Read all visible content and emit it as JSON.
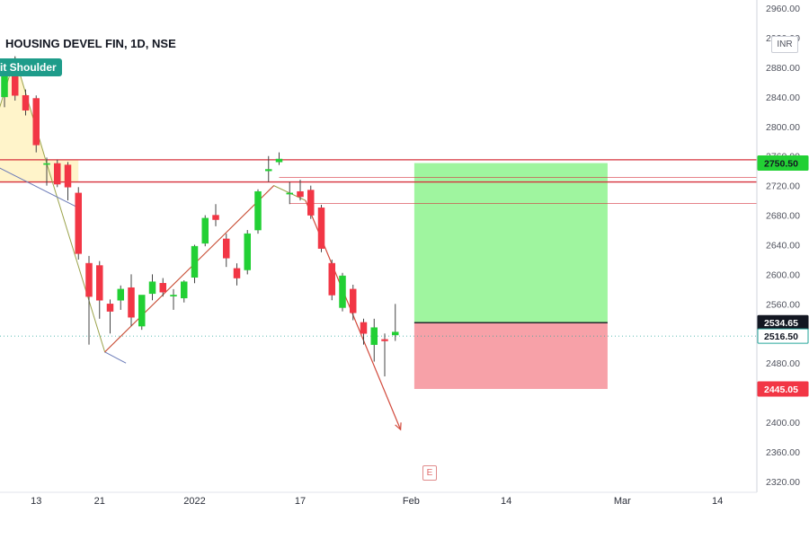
{
  "header": {
    "title": "HOUSING DEVEL FIN, 1D, NSE",
    "pattern_label": "it Shoulder",
    "currency": "INR",
    "event_marker": "E"
  },
  "colors": {
    "up": "#22d034",
    "down": "#f23645",
    "profit_zone": "#9ff59f",
    "loss_zone": "#f7a1a8",
    "pattern_fill": "#fff3c4",
    "pattern_line": "#9aa24a",
    "resistance": "#d6303c",
    "badge_dark": "#131722",
    "badge_red": "#f23645",
    "badge_green": "#22d034"
  },
  "chart_data": {
    "type": "candlestick",
    "title": "HOUSING DEVEL FIN, 1D, NSE",
    "ylim": [
      2315,
      2965
    ],
    "y_ticks": [
      2320,
      2360,
      2400,
      2440,
      2480,
      2520,
      2560,
      2600,
      2640,
      2680,
      2720,
      2760,
      2800,
      2840,
      2880,
      2920,
      2960
    ],
    "y_tick_labels": [
      "2320.00",
      "2360.00",
      "2400.00",
      "2440.00",
      "2480.00",
      "2520.00",
      "2560.00",
      "2600.00",
      "2640.00",
      "2680.00",
      "2720.00",
      "2760.00",
      "2800.00",
      "2840.00",
      "2880.00",
      "2920.00",
      "2960.00"
    ],
    "x_labels": [
      {
        "label": "13",
        "bar": 3
      },
      {
        "label": "21",
        "bar": 9
      },
      {
        "label": "2022",
        "bar": 18
      },
      {
        "label": "17",
        "bar": 28
      },
      {
        "label": "Feb",
        "bar": 38.5
      },
      {
        "label": "14",
        "bar": 47.5
      },
      {
        "label": "Mar",
        "bar": 58.5
      },
      {
        "label": "14",
        "bar": 67.5
      }
    ],
    "candles": [
      {
        "o": 2840,
        "h": 2875,
        "l": 2826,
        "c": 2870
      },
      {
        "o": 2868,
        "h": 2895,
        "l": 2835,
        "c": 2842
      },
      {
        "o": 2842,
        "h": 2850,
        "l": 2815,
        "c": 2822
      },
      {
        "o": 2838,
        "h": 2842,
        "l": 2765,
        "c": 2775
      },
      {
        "o": 2750,
        "h": 2758,
        "l": 2720,
        "c": 2750
      },
      {
        "o": 2750,
        "h": 2755,
        "l": 2718,
        "c": 2722
      },
      {
        "o": 2748,
        "h": 2752,
        "l": 2700,
        "c": 2718
      },
      {
        "o": 2710,
        "h": 2718,
        "l": 2620,
        "c": 2628
      },
      {
        "o": 2615,
        "h": 2625,
        "l": 2505,
        "c": 2570
      },
      {
        "o": 2612,
        "h": 2618,
        "l": 2540,
        "c": 2565
      },
      {
        "o": 2560,
        "h": 2566,
        "l": 2520,
        "c": 2550
      },
      {
        "o": 2565,
        "h": 2585,
        "l": 2552,
        "c": 2580
      },
      {
        "o": 2582,
        "h": 2600,
        "l": 2530,
        "c": 2542
      },
      {
        "o": 2530,
        "h": 2570,
        "l": 2525,
        "c": 2572
      },
      {
        "o": 2574,
        "h": 2600,
        "l": 2565,
        "c": 2590
      },
      {
        "o": 2588,
        "h": 2595,
        "l": 2570,
        "c": 2576
      },
      {
        "o": 2572,
        "h": 2580,
        "l": 2552,
        "c": 2572
      },
      {
        "o": 2568,
        "h": 2592,
        "l": 2562,
        "c": 2590
      },
      {
        "o": 2596,
        "h": 2640,
        "l": 2588,
        "c": 2638
      },
      {
        "o": 2642,
        "h": 2680,
        "l": 2638,
        "c": 2676
      },
      {
        "o": 2680,
        "h": 2695,
        "l": 2665,
        "c": 2674
      },
      {
        "o": 2648,
        "h": 2655,
        "l": 2610,
        "c": 2622
      },
      {
        "o": 2608,
        "h": 2615,
        "l": 2585,
        "c": 2595
      },
      {
        "o": 2606,
        "h": 2660,
        "l": 2600,
        "c": 2655
      },
      {
        "o": 2660,
        "h": 2715,
        "l": 2655,
        "c": 2712
      },
      {
        "o": 2740,
        "h": 2760,
        "l": 2725,
        "c": 2742
      },
      {
        "o": 2752,
        "h": 2765,
        "l": 2748,
        "c": 2756
      },
      {
        "o": 2710,
        "h": 2725,
        "l": 2695,
        "c": 2710
      },
      {
        "o": 2712,
        "h": 2728,
        "l": 2700,
        "c": 2705
      },
      {
        "o": 2714,
        "h": 2720,
        "l": 2675,
        "c": 2680
      },
      {
        "o": 2690,
        "h": 2694,
        "l": 2630,
        "c": 2635
      },
      {
        "o": 2615,
        "h": 2620,
        "l": 2565,
        "c": 2572
      },
      {
        "o": 2555,
        "h": 2602,
        "l": 2550,
        "c": 2598
      },
      {
        "o": 2580,
        "h": 2586,
        "l": 2538,
        "c": 2548
      },
      {
        "o": 2535,
        "h": 2540,
        "l": 2505,
        "c": 2520
      },
      {
        "o": 2505,
        "h": 2540,
        "l": 2482,
        "c": 2528
      },
      {
        "o": 2512,
        "h": 2520,
        "l": 2462,
        "c": 2510
      },
      {
        "o": 2518,
        "h": 2560,
        "l": 2510,
        "c": 2522
      }
    ],
    "pattern": {
      "name": "Head and Shoulders",
      "points": [
        [
          -2,
          2755
        ],
        [
          1,
          2893
        ],
        [
          4,
          2750
        ],
        [
          9.5,
          2495
        ],
        [
          25.5,
          2720
        ],
        [
          28.5,
          2700
        ],
        [
          37.5,
          2390
        ]
      ]
    },
    "trend_line_head": [
      [
        9.5,
        2495
      ],
      [
        25.5,
        2720
      ]
    ],
    "horizontal_levels": [
      {
        "price": 2755,
        "role": "resistance",
        "from_bar": -2
      },
      {
        "price": 2725,
        "role": "resistance",
        "from_bar": -2
      },
      {
        "price": 2731,
        "role": "level",
        "from_bar": 26
      },
      {
        "price": 2696,
        "role": "level",
        "from_bar": 27
      }
    ],
    "position": {
      "entry": 2534.65,
      "target": 2750.5,
      "stop": 2445.05,
      "from_bar": 38.8,
      "to_bar": 57.1
    },
    "last_price": 2516.5,
    "price_badges": [
      {
        "value": 2750.5,
        "label": "2750.50",
        "style": "green"
      },
      {
        "value": 2534.65,
        "label": "2534.65",
        "style": "dark"
      },
      {
        "value": 2516.5,
        "label": "2516.50",
        "style": "outline"
      },
      {
        "value": 2445.05,
        "label": "2445.05",
        "style": "red"
      }
    ]
  }
}
